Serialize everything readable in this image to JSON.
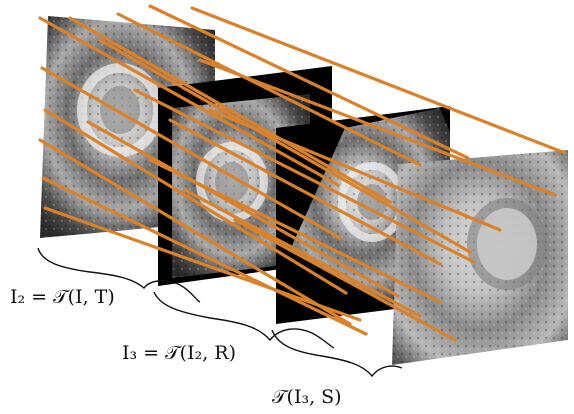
{
  "labels": {
    "step1": "I₂ = 𝒯(I, T)",
    "step2": "I₃ = 𝒯(I₂, R)",
    "step3": "𝒯(I₃, S)"
  },
  "images": [
    {
      "name": "original-mri-slice",
      "content": "cardiac MRI short-axis slice"
    },
    {
      "name": "translated-mri-slice",
      "content": "translated cardiac MRI slice"
    },
    {
      "name": "rotated-mri-slice",
      "content": "rotated cardiac MRI slice"
    },
    {
      "name": "scaled-mri-slice",
      "content": "scaled cardiac MRI slice"
    }
  ],
  "colors": {
    "ray": "#d9822b",
    "frame_black": "#000000",
    "tissue_light": "#cfcfcf",
    "tissue_dark": "#3a3a3a"
  }
}
